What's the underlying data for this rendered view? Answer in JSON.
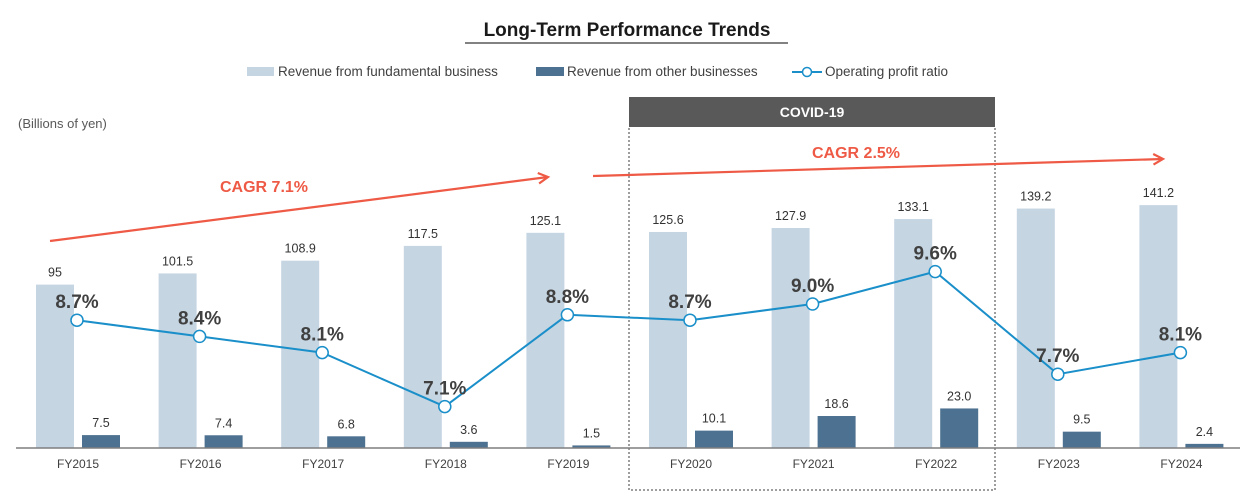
{
  "chart_data": {
    "type": "bar",
    "title": "Long-Term Performance Trends",
    "unit_label": "(Billions of yen)",
    "xlabel": "",
    "ylabel": "",
    "categories": [
      "FY2015",
      "FY2016",
      "FY2017",
      "FY2018",
      "FY2019",
      "FY2020",
      "FY2021",
      "FY2022",
      "FY2023",
      "FY2024"
    ],
    "series": [
      {
        "name": "Revenue from fundamental business",
        "type": "bar",
        "color": "#c5d5e2",
        "values": [
          95,
          101.5,
          108.9,
          117.5,
          125.1,
          125.6,
          127.9,
          133.1,
          139.2,
          141.2
        ],
        "labels": [
          "95",
          "101.5",
          "108.9",
          "117.5",
          "125.1",
          "125.6",
          "127.9",
          "133.1",
          "139.2",
          "141.2"
        ]
      },
      {
        "name": "Revenue from other businesses",
        "type": "bar",
        "color": "#4d7190",
        "values": [
          7.5,
          7.4,
          6.8,
          3.6,
          1.5,
          10.1,
          18.6,
          23.0,
          9.5,
          2.4
        ],
        "labels": [
          "7.5",
          "7.4",
          "6.8",
          "3.6",
          "1.5",
          "10.1",
          "18.6",
          "23.0",
          "9.5",
          "2.4"
        ]
      },
      {
        "name": "Operating profit ratio",
        "type": "line",
        "color": "#1a8fc9",
        "unit": "%",
        "values": [
          8.7,
          8.4,
          8.1,
          7.1,
          8.8,
          8.7,
          9.0,
          9.6,
          7.7,
          8.1
        ],
        "labels": [
          "8.7%",
          "8.4%",
          "8.1%",
          "7.1%",
          "8.8%",
          "8.7%",
          "9.0%",
          "9.6%",
          "7.7%",
          "8.1%"
        ]
      }
    ],
    "ylim": [
      0,
      160
    ],
    "grid": false,
    "legend_position": "top-center",
    "annotations": [
      {
        "type": "arrow",
        "label": "CAGR 7.1%",
        "from": "FY2015",
        "to": "FY2019",
        "color": "#ee5a45"
      },
      {
        "type": "arrow",
        "label": "CAGR 2.5%",
        "from": "FY2019",
        "to": "FY2024",
        "color": "#ee5a45"
      },
      {
        "type": "highlight-box",
        "label": "COVID-19",
        "from": "FY2020",
        "to": "FY2022",
        "header_color": "#595959"
      }
    ]
  }
}
